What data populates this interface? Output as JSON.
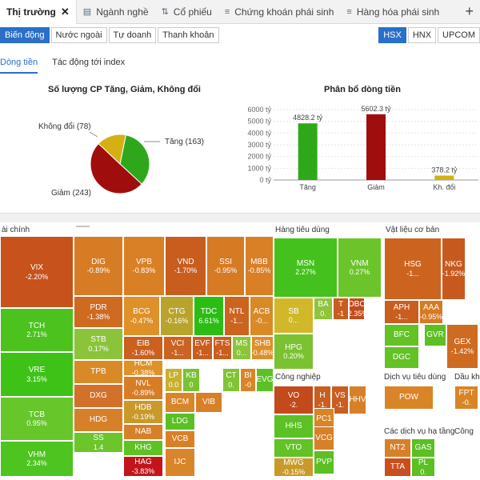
{
  "tabs": [
    {
      "label": "Thị trường",
      "icon": "",
      "active": true
    },
    {
      "label": "Ngành nghề",
      "icon": "table-icon"
    },
    {
      "label": "Cổ phiếu",
      "icon": "sort-icon"
    },
    {
      "label": "Chứng khoán phái sinh",
      "icon": "list-number-icon"
    },
    {
      "label": "Hàng hóa phái sinh",
      "icon": "list-number-icon"
    }
  ],
  "subtabs": [
    "Biến động",
    "Nước ngoài",
    "Tự doanh",
    "Thanh khoản"
  ],
  "exchanges": [
    "HSX",
    "HNX",
    "UPCOM"
  ],
  "views": [
    "Dòng tiền",
    "Tác động tới index"
  ],
  "pie": {
    "title": "Số lượng CP Tăng, Giảm, Không đổi",
    "items": [
      {
        "label": "Tăng (163)",
        "value": 163,
        "color": "#2ea81a"
      },
      {
        "label": "Giảm (243)",
        "value": 243,
        "color": "#a00d0d"
      },
      {
        "label": "Không đổi (78)",
        "value": 78,
        "color": "#d4b012"
      }
    ]
  },
  "chart_data": {
    "type": "bar",
    "title": "Phân bổ dòng tiền",
    "categories": [
      "Tăng",
      "Giảm",
      "Kh. đổi"
    ],
    "values": [
      4828.2,
      5602.3,
      378.2
    ],
    "value_labels": [
      "4828.2 tỷ",
      "5602.3 tỷ",
      "378.2 tỷ"
    ],
    "colors": [
      "#2ea81a",
      "#a00d0d",
      "#d4b012"
    ],
    "yticks": [
      "6000 tỷ",
      "5000 tỷ",
      "4000 tỷ",
      "3000 tỷ",
      "2000 tỷ",
      "1000 tỷ",
      "0 tỷ"
    ],
    "ylim": [
      0,
      6000
    ]
  },
  "treemap": {
    "sectors": [
      "ài chính",
      "Hàng tiêu dùng",
      "Vật liệu cơ bản",
      "Công nghiệp",
      "Dịch vụ tiêu dùng",
      "Dầu khí",
      "Các dịch vụ hạ tầng",
      "Công"
    ],
    "cells": [
      {
        "code": "VIX",
        "value": "-2.20%",
        "color": "#c7521c"
      },
      {
        "code": "TCH",
        "value": "2.71%",
        "color": "#4cc21f"
      },
      {
        "code": "VRE",
        "value": "3.15%",
        "color": "#3fc218"
      },
      {
        "code": "TCB",
        "value": "0.95%",
        "color": "#66c62a"
      },
      {
        "code": "VHM",
        "value": "2.34%",
        "color": "#4ec420"
      },
      {
        "code": "DIG",
        "value": "-0.89%",
        "color": "#d77c25"
      },
      {
        "code": "VPB",
        "value": "-0.83%",
        "color": "#d98027"
      },
      {
        "code": "VND",
        "value": "-1.70%",
        "color": "#c95d1e"
      },
      {
        "code": "SSI",
        "value": "-0.95%",
        "color": "#d67a24"
      },
      {
        "code": "MBB",
        "value": "-0.85%",
        "color": "#d97f26"
      },
      {
        "code": "PDR",
        "value": "-1.38%",
        "color": "#cf6a21"
      },
      {
        "code": "BCG",
        "value": "-0.47%",
        "color": "#de9128"
      },
      {
        "code": "CTG",
        "value": "-0.16%",
        "color": "#b8a42c"
      },
      {
        "code": "TDC",
        "value": "6.61%",
        "color": "#2bbd14"
      },
      {
        "code": "NTL",
        "value": "-1...",
        "color": "#cc6420"
      },
      {
        "code": "ACB",
        "value": "-0...",
        "color": "#d98a27"
      },
      {
        "code": "STB",
        "value": "0.17%",
        "color": "#8bc43a"
      },
      {
        "code": "EIB",
        "value": "-1.60%",
        "color": "#cb6020"
      },
      {
        "code": "VCI",
        "value": "-1...",
        "color": "#cc6320"
      },
      {
        "code": "EVF",
        "value": "-1...",
        "color": "#c95e1f"
      },
      {
        "code": "FTS",
        "value": "-1...",
        "color": "#c95e1f"
      },
      {
        "code": "MS",
        "value": "0...",
        "color": "#8ac63a"
      },
      {
        "code": "SHB",
        "value": "-0.48%",
        "color": "#dd8f28"
      },
      {
        "code": "TPB",
        "value": "",
        "color": "#d98a27"
      },
      {
        "code": "HCM",
        "value": "-0.38%",
        "color": "#de9229"
      },
      {
        "code": "DXG",
        "value": "",
        "color": "#d3702a"
      },
      {
        "code": "NVL",
        "value": "-0.89%",
        "color": "#d77d25"
      },
      {
        "code": "HDG",
        "value": "",
        "color": "#d7802a"
      },
      {
        "code": "HDB",
        "value": "-0.19%",
        "color": "#c99a2a"
      },
      {
        "code": "SS",
        "value": "1.4",
        "color": "#6cc52b"
      },
      {
        "code": "LP",
        "value": "0.0",
        "color": "#c7b02d"
      },
      {
        "code": "KB",
        "value": "0",
        "color": "#7bc232"
      },
      {
        "code": "CT",
        "value": "0.",
        "color": "#80c435"
      },
      {
        "code": "BI",
        "value": "-0",
        "color": "#d98527"
      },
      {
        "code": "EVG",
        "value": "",
        "color": "#5cc124"
      },
      {
        "code": "BCM",
        "value": "",
        "color": "#d9852a"
      },
      {
        "code": "VIB",
        "value": "",
        "color": "#d78028"
      },
      {
        "code": "LDG",
        "value": "",
        "color": "#5cbf24"
      },
      {
        "code": "VCB",
        "value": "",
        "color": "#d98027"
      },
      {
        "code": "IJC",
        "value": "",
        "color": "#d9852a"
      },
      {
        "code": "NAB",
        "value": "",
        "color": "#d7802a"
      },
      {
        "code": "KHG",
        "value": "",
        "color": "#5ec225"
      },
      {
        "code": "HAG",
        "value": "-3.83%",
        "color": "#c2151a"
      },
      {
        "code": "MSN",
        "value": "2.27%",
        "color": "#44c11d"
      },
      {
        "code": "VNM",
        "value": "0.27%",
        "color": "#6cc42b"
      },
      {
        "code": "SB",
        "value": "0...",
        "color": "#d0b82a"
      },
      {
        "code": "BA",
        "value": "0.",
        "color": "#8fc43c"
      },
      {
        "code": "T",
        "value": "-1",
        "color": "#c95d1f"
      },
      {
        "code": "DBC",
        "value": "-2.35%",
        "color": "#c24a1b"
      },
      {
        "code": "HPG",
        "value": "0.20%",
        "color": "#7bc232"
      },
      {
        "code": "HSG",
        "value": "-1...",
        "color": "#cc6420"
      },
      {
        "code": "NKG",
        "value": "-1.92%",
        "color": "#c65a1e"
      },
      {
        "code": "APH",
        "value": "-1...",
        "color": "#c95e1f"
      },
      {
        "code": "AAA",
        "value": "-0.95%",
        "color": "#d67a24"
      },
      {
        "code": "BFC",
        "value": "",
        "color": "#62c226"
      },
      {
        "code": "GVR",
        "value": "",
        "color": "#5cbf24"
      },
      {
        "code": "DGC",
        "value": "",
        "color": "#62c226"
      },
      {
        "code": "GEX",
        "value": "-1.42%",
        "color": "#cf6a21"
      },
      {
        "code": "VO",
        "value": "-2.",
        "color": "#c24a1b"
      },
      {
        "code": "H",
        "value": "-1.",
        "color": "#c95e1f"
      },
      {
        "code": "VS",
        "value": "-1.",
        "color": "#c95e1f"
      },
      {
        "code": "HHV",
        "value": "",
        "color": "#d7802a"
      },
      {
        "code": "HHS",
        "value": "",
        "color": "#5cc124"
      },
      {
        "code": "PC1",
        "value": "",
        "color": "#d98527"
      },
      {
        "code": "VCG",
        "value": "",
        "color": "#d7802a"
      },
      {
        "code": "VTO",
        "value": "",
        "color": "#62c226"
      },
      {
        "code": "PVP",
        "value": "",
        "color": "#5cbf24"
      },
      {
        "code": "MWG",
        "value": "-0.15%",
        "color": "#c99a2a"
      },
      {
        "code": "POW",
        "value": "",
        "color": "#d98527"
      },
      {
        "code": "NT2",
        "value": "",
        "color": "#d7802a"
      },
      {
        "code": "GAS",
        "value": "",
        "color": "#5cbf24"
      },
      {
        "code": "TTA",
        "value": "",
        "color": "#c94f1f"
      },
      {
        "code": "PL",
        "value": "0.",
        "color": "#5cbf24"
      },
      {
        "code": "FPT",
        "value": "-0.",
        "color": "#d98527"
      }
    ]
  }
}
